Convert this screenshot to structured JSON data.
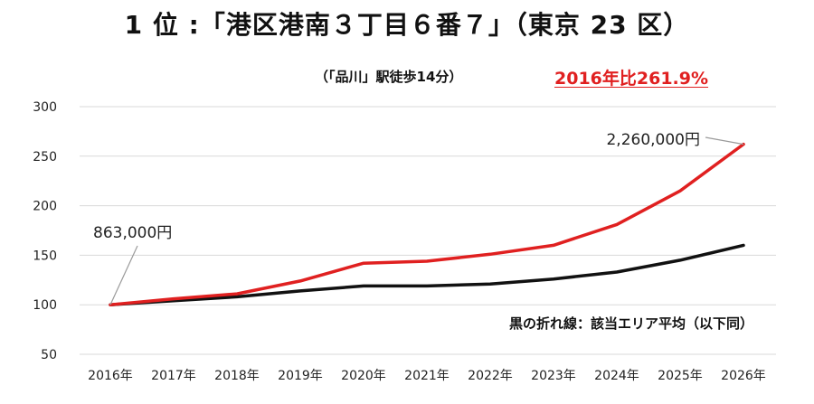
{
  "header": {
    "title": "1 位 :「港区港南３丁目６番７」（東京 23 区）",
    "subtitle": "（「品川」駅徒歩14分）",
    "ratio_label": "2016年比261.9%"
  },
  "colors": {
    "red_series": "#e02020",
    "black_series": "#111111",
    "grid": "#d9d9d9",
    "ratio_text": "#e02020"
  },
  "chart_data": {
    "type": "line",
    "title": "",
    "xlabel": "",
    "ylabel": "",
    "categories": [
      "2016年",
      "2017年",
      "2018年",
      "2019年",
      "2020年",
      "2021年",
      "2022年",
      "2023年",
      "2024年",
      "2025年",
      "2026年"
    ],
    "y_ticks": [
      50,
      100,
      150,
      200,
      250,
      300
    ],
    "ylim": [
      50,
      300
    ],
    "grid": true,
    "series": [
      {
        "name": "",
        "color": "#e02020",
        "values": [
          100,
          106,
          111,
          124,
          142,
          144,
          151,
          160,
          181,
          215,
          262
        ]
      },
      {
        "name": "",
        "color": "#111111",
        "values": [
          100,
          104,
          108,
          114,
          119,
          119,
          121,
          126,
          133,
          145,
          160
        ]
      }
    ],
    "annotations": [
      {
        "text": "863,000円",
        "target_series": 0,
        "target_index": 0
      },
      {
        "text": "2,260,000円",
        "target_series": 0,
        "target_index": 10
      }
    ],
    "note": "黒の折れ線：該当エリア平均（以下同）"
  }
}
